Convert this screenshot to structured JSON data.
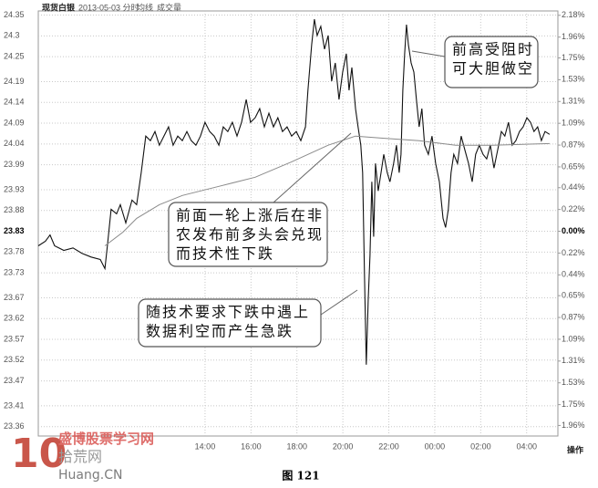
{
  "chart_data": {
    "type": "line",
    "header": {
      "symbol": "现货白银",
      "date": "2013-05-03 分时",
      "items": [
        "均线",
        "成交量"
      ]
    },
    "xlim": [
      6.74,
      29.36
    ],
    "xticks": [
      {
        "value": 14,
        "label": "14:00"
      },
      {
        "value": 16,
        "label": "16:00"
      },
      {
        "value": 18,
        "label": "18:00"
      },
      {
        "value": 20,
        "label": "20:00"
      },
      {
        "value": 22,
        "label": "22:00"
      },
      {
        "value": 24,
        "label": "00:00"
      },
      {
        "value": 26,
        "label": "02:00"
      },
      {
        "value": 28,
        "label": "04:00"
      }
    ],
    "corner_label": "操作",
    "ylim": [
      23.355,
      24.36
    ],
    "yticks": [
      24.35,
      24.3,
      24.25,
      24.19,
      24.14,
      24.09,
      24.04,
      23.99,
      23.93,
      23.88,
      23.83,
      23.78,
      23.73,
      23.67,
      23.62,
      23.57,
      23.52,
      23.47,
      23.41,
      23.36
    ],
    "y2lim": [
      -1.993,
      2.224
    ],
    "y2ticks": [
      {
        "value": 2.18,
        "label": "2.18%"
      },
      {
        "value": 1.96,
        "label": "1.96%"
      },
      {
        "value": 1.75,
        "label": "1.75%"
      },
      {
        "value": 1.53,
        "label": "1.53%"
      },
      {
        "value": 1.31,
        "label": "1.31%"
      },
      {
        "value": 1.09,
        "label": "1.09%"
      },
      {
        "value": 0.87,
        "label": "0.87%"
      },
      {
        "value": 0.65,
        "label": "0.65%"
      },
      {
        "value": 0.44,
        "label": "0.44%"
      },
      {
        "value": 0.22,
        "label": "0.22%"
      },
      {
        "value": 0,
        "label": "0.00%"
      },
      {
        "value": -0.22,
        "label": "0.22%"
      },
      {
        "value": -0.44,
        "label": "0.44%"
      },
      {
        "value": -0.65,
        "label": "0.65%"
      },
      {
        "value": -0.87,
        "label": "0.87%"
      },
      {
        "value": -1.09,
        "label": "1.09%"
      },
      {
        "value": -1.31,
        "label": "1.31%"
      },
      {
        "value": -1.53,
        "label": "1.53%"
      },
      {
        "value": -1.75,
        "label": "1.75%"
      },
      {
        "value": -1.96,
        "label": "1.96%"
      }
    ],
    "grid": true,
    "series": [
      {
        "color": "#111111",
        "x": [
          6.74,
          7.05,
          7.25,
          7.45,
          7.85,
          8.25,
          8.64,
          9.04,
          9.44,
          9.64,
          9.75,
          9.91,
          10.15,
          10.31,
          10.55,
          10.82,
          11.02,
          11.22,
          11.42,
          11.62,
          11.82,
          12.01,
          12.21,
          12.41,
          12.61,
          12.81,
          13.01,
          13.21,
          13.4,
          13.6,
          13.8,
          14.0,
          14.2,
          14.4,
          14.6,
          14.79,
          14.99,
          15.19,
          15.39,
          15.59,
          15.79,
          15.98,
          16.18,
          16.38,
          16.58,
          16.78,
          16.98,
          17.17,
          17.37,
          17.57,
          17.77,
          17.97,
          18.17,
          18.37,
          18.48,
          18.64,
          18.76,
          18.88,
          19.04,
          19.2,
          19.36,
          19.51,
          19.67,
          19.83,
          19.99,
          20.15,
          20.27,
          20.39,
          20.55,
          20.66,
          20.78,
          20.86,
          20.94,
          21.02,
          21.1,
          21.18,
          21.26,
          21.34,
          21.42,
          21.54,
          21.66,
          21.78,
          21.93,
          22.05,
          22.21,
          22.33,
          22.45,
          22.53,
          22.61,
          22.69,
          22.77,
          22.85,
          22.97,
          23.09,
          23.2,
          23.32,
          23.44,
          23.56,
          23.72,
          23.88,
          24.04,
          24.2,
          24.36,
          24.47,
          24.59,
          24.71,
          24.83,
          24.99,
          25.15,
          25.31,
          25.47,
          25.63,
          25.78,
          25.94,
          26.1,
          26.26,
          26.42,
          26.58,
          26.74,
          26.9,
          27.05,
          27.21,
          27.37,
          27.53,
          27.69,
          27.85,
          28.01,
          28.17,
          28.32,
          28.48,
          28.64,
          28.8,
          29.0
        ],
        "values": [
          23.795,
          23.806,
          23.821,
          23.795,
          23.784,
          23.79,
          23.777,
          23.768,
          23.762,
          23.74,
          23.795,
          23.883,
          23.872,
          23.894,
          23.85,
          23.905,
          23.894,
          23.971,
          24.059,
          24.048,
          24.07,
          24.037,
          24.059,
          24.081,
          24.037,
          24.059,
          24.048,
          24.07,
          24.048,
          24.037,
          24.059,
          24.092,
          24.07,
          24.059,
          24.037,
          24.081,
          24.07,
          24.092,
          24.059,
          24.092,
          24.147,
          24.092,
          24.103,
          24.125,
          24.081,
          24.114,
          24.081,
          24.103,
          24.07,
          24.081,
          24.059,
          24.07,
          24.048,
          24.081,
          24.169,
          24.279,
          24.34,
          24.301,
          24.323,
          24.268,
          24.301,
          24.191,
          24.235,
          24.147,
          24.213,
          24.257,
          24.169,
          24.224,
          24.125,
          24.081,
          24.037,
          23.971,
          23.729,
          23.509,
          23.663,
          23.773,
          23.949,
          23.817,
          23.993,
          23.927,
          23.971,
          24.015,
          23.971,
          23.949,
          23.993,
          24.037,
          23.971,
          24.015,
          24.169,
          24.257,
          24.327,
          24.279,
          24.235,
          24.213,
          24.147,
          24.081,
          24.125,
          24.037,
          24.015,
          24.059,
          23.993,
          23.949,
          23.861,
          23.839,
          23.883,
          23.971,
          24.015,
          23.993,
          24.059,
          24.026,
          23.993,
          23.949,
          24.015,
          24.037,
          24.015,
          24.004,
          24.037,
          23.982,
          24.026,
          24.07,
          24.059,
          24.092,
          24.037,
          24.048,
          24.07,
          24.081,
          24.103,
          24.092,
          24.07,
          24.081,
          24.048,
          24.07,
          24.063
        ]
      },
      {
        "color": "#8a8a8a",
        "x": [
          9.64,
          10.43,
          11.02,
          12.01,
          13.01,
          14.6,
          16.18,
          17.77,
          19.36,
          20.55,
          21.74,
          23.32,
          24.91,
          26.5,
          29.0
        ],
        "values": [
          23.795,
          23.828,
          23.861,
          23.894,
          23.916,
          23.938,
          23.96,
          23.997,
          24.037,
          24.059,
          24.054,
          24.048,
          24.037,
          24.037,
          24.041
        ]
      }
    ],
    "annotations": [
      {
        "lines": [
          "前高受阻时",
          "可大胆做空"
        ]
      },
      {
        "lines": [
          "前面一轮上涨后在非",
          "农发布前多头会兑现",
          "而技术性下跌"
        ]
      },
      {
        "lines": [
          "随技术要求下跌中遇上",
          "数据利空而产生急跌"
        ]
      }
    ],
    "watermark": {
      "logo": "10",
      "site": "盛博股票学习网",
      "name": "拾荒网",
      "domain": "Huang.CN"
    },
    "caption": "图 121"
  }
}
